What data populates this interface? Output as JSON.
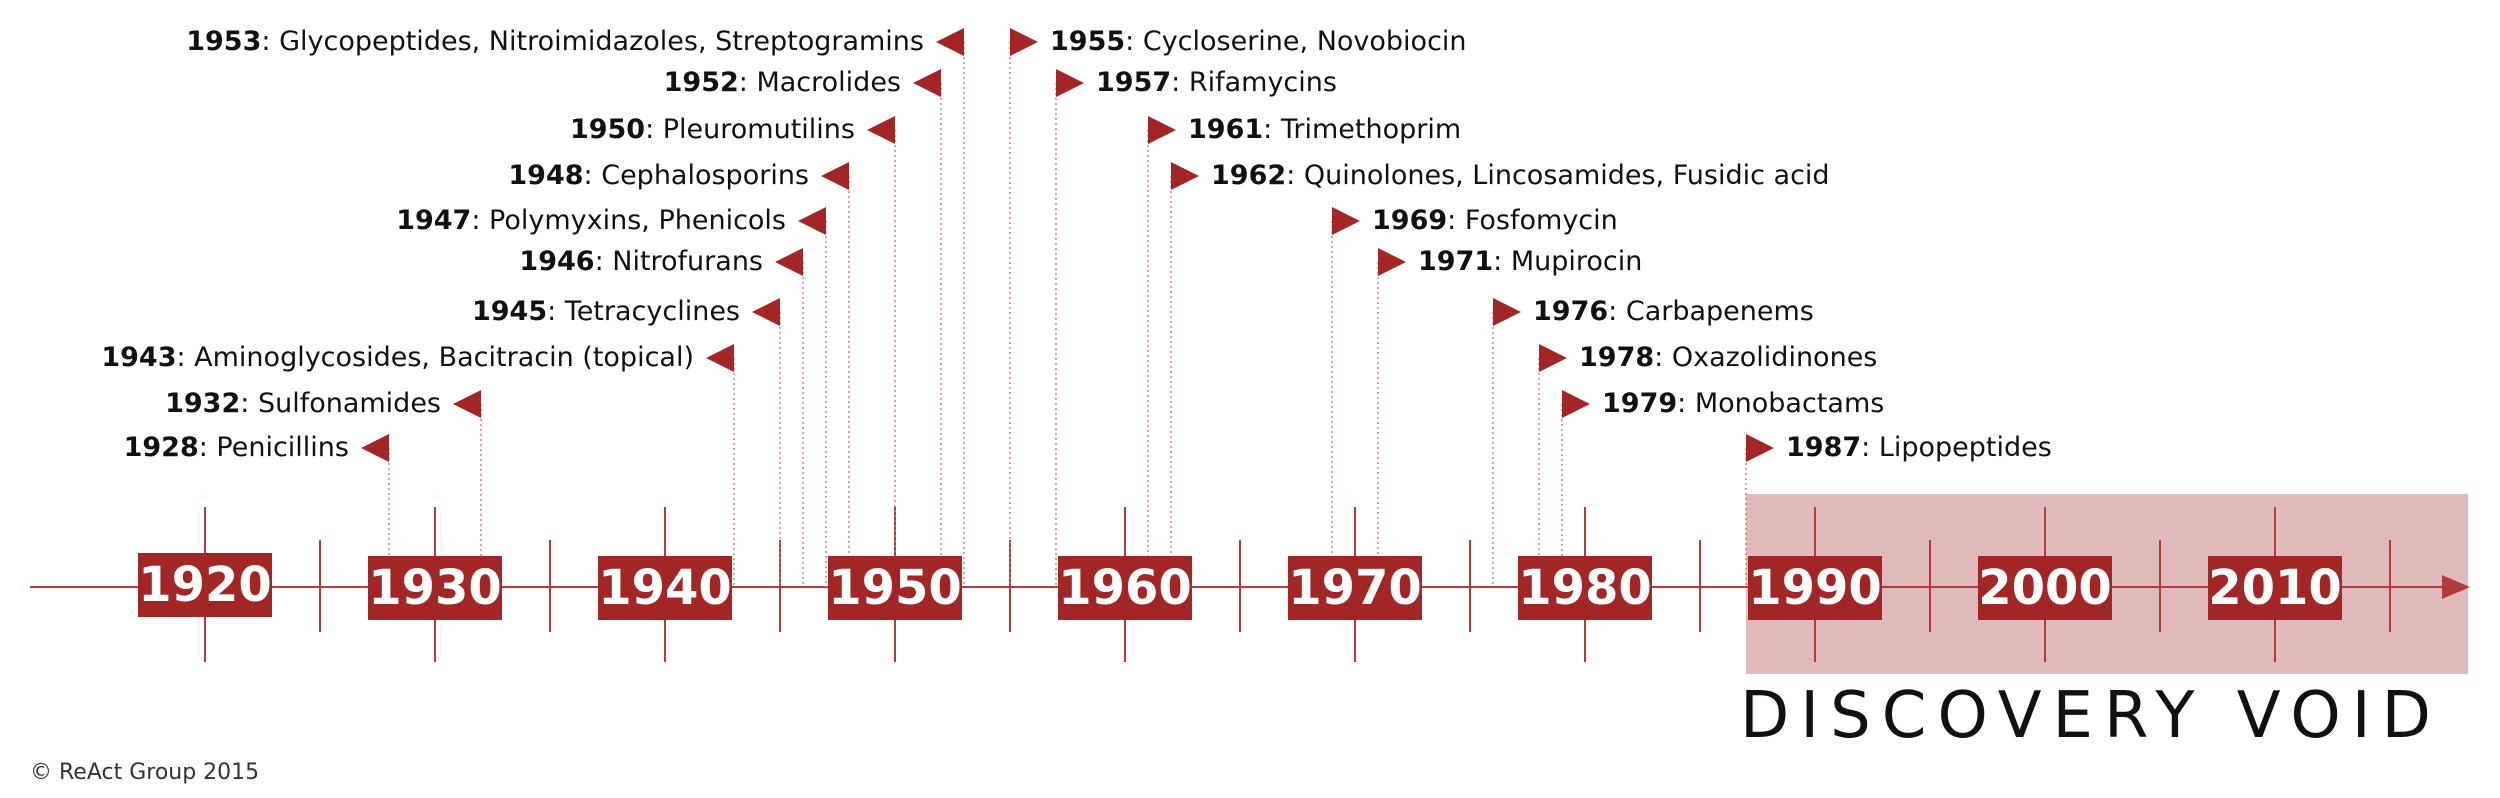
{
  "colors": {
    "accent": "#a32626",
    "void_fill": "#dfb9bb",
    "axis": "#b33b3b"
  },
  "axis": {
    "start_year": 1917,
    "end_year": 2025
  },
  "discovery_void": {
    "title": "DISCOVERY VOID",
    "from_year": 1987,
    "to_year": 2025
  },
  "decades": [
    {
      "label": "1920",
      "year": 1920
    },
    {
      "label": "1930",
      "year": 1930
    },
    {
      "label": "1940",
      "year": 1940
    },
    {
      "label": "1950",
      "year": 1950
    },
    {
      "label": "1960",
      "year": 1960
    },
    {
      "label": "1970",
      "year": 1970
    },
    {
      "label": "1980",
      "year": 1980
    },
    {
      "label": "1990",
      "year": 1990
    },
    {
      "label": "2000",
      "year": 2000
    },
    {
      "label": "2010",
      "year": 2010
    }
  ],
  "events": [
    {
      "year": "1928",
      "text": ": Penicillins",
      "side": "left"
    },
    {
      "year": "1932",
      "text": ": Sulfonamides",
      "side": "left"
    },
    {
      "year": "1943",
      "text": ": Aminoglycosides, Bacitracin (topical)",
      "side": "left"
    },
    {
      "year": "1945",
      "text": ": Tetracyclines",
      "side": "left"
    },
    {
      "year": "1946",
      "text": ": Nitrofurans",
      "side": "left"
    },
    {
      "year": "1947",
      "text": ": Polymyxins, Phenicols",
      "side": "left"
    },
    {
      "year": "1948",
      "text": ": Cephalosporins",
      "side": "left"
    },
    {
      "year": "1950",
      "text": ": Pleuromutilins",
      "side": "left"
    },
    {
      "year": "1952",
      "text": ": Macrolides",
      "side": "left"
    },
    {
      "year": "1953",
      "text": ": Glycopeptides, Nitroimidazoles, Streptogramins",
      "side": "left"
    },
    {
      "year": "1955",
      "text": ": Cycloserine, Novobiocin",
      "side": "right"
    },
    {
      "year": "1957",
      "text": ": Rifamycins",
      "side": "right"
    },
    {
      "year": "1961",
      "text": ": Trimethoprim",
      "side": "right"
    },
    {
      "year": "1962",
      "text": ": Quinolones, Lincosamides, Fusidic acid",
      "side": "right"
    },
    {
      "year": "1969",
      "text": ": Fosfomycin",
      "side": "right"
    },
    {
      "year": "1971",
      "text": ": Mupirocin",
      "side": "right"
    },
    {
      "year": "1976",
      "text": ": Carbapenems",
      "side": "right"
    },
    {
      "year": "1978",
      "text": ": Oxazolidinones",
      "side": "right"
    },
    {
      "year": "1979",
      "text": ": Monobactams",
      "side": "right"
    },
    {
      "year": "1987",
      "text": ": Lipopeptides",
      "side": "right"
    }
  ],
  "footer": {
    "copyright": "© ReAct Group 2015"
  }
}
